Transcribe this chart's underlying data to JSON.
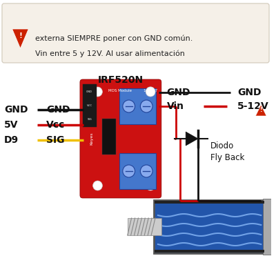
{
  "bg_color": "#ffffff",
  "warning_box_color": "#f5f0e8",
  "warning_box_border": "#d0c8b8",
  "warning_text_line1": "Vin entre 5 y 12V. Al usar alimentación",
  "warning_text_line2": "externa SIEMPRE poner con GND común.",
  "warning_icon_color": "#cc2200",
  "irf_label": "IRF520N",
  "diodo_label": "Diodo\nFly Back",
  "wire_yellow": "#f0c000",
  "wire_red": "#cc0000",
  "wire_black": "#111111",
  "module_red": "#cc1111",
  "module_dark_red": "#880000",
  "blue_conn": "#4477cc",
  "blue_conn_dark": "#224499",
  "blue_conn_light": "#88aaee",
  "solenoid_blue": "#2255aa",
  "solenoid_light": "#7799dd",
  "solenoid_metal": "#aaaaaa",
  "solenoid_dark": "#555555",
  "shaft_color": "#cccccc",
  "shaft_dark": "#888888"
}
